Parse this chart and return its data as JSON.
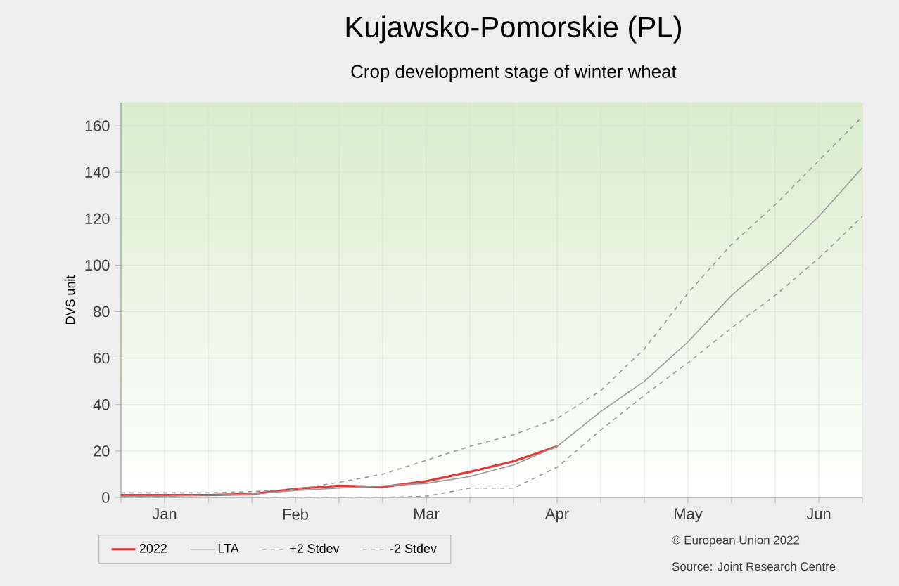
{
  "chart_data": {
    "type": "line",
    "title": "Kujawsko-Pomorskie (PL)",
    "subtitle": "Crop development stage of winter wheat",
    "ylabel": "DVS unit",
    "categories": [
      null,
      "Jan",
      null,
      null,
      "Feb",
      null,
      null,
      "Mar",
      null,
      null,
      "Apr",
      null,
      null,
      "May",
      null,
      null,
      "Jun",
      null
    ],
    "ylim": [
      0,
      170
    ],
    "yticks": [
      0,
      20,
      40,
      60,
      80,
      100,
      120,
      140,
      160
    ],
    "series": [
      {
        "name": "2022",
        "color": "#e03c3c",
        "line_style": "solid",
        "values": [
          1,
          1,
          1,
          1.5,
          3.7,
          5,
          4.5,
          7,
          11,
          15.6,
          22,
          null,
          null,
          null,
          null,
          null,
          null,
          null
        ]
      },
      {
        "name": "LTA",
        "color": "#999999",
        "line_style": "solid",
        "values": [
          0.5,
          0.5,
          1,
          1.5,
          3,
          4,
          5,
          6,
          9,
          14,
          22,
          37,
          50,
          67,
          87,
          103,
          121,
          142
        ]
      },
      {
        "name": "+2 Stdev",
        "color": "#999999",
        "line_style": "dashed",
        "values": [
          2,
          2,
          2,
          2.5,
          3.5,
          6.5,
          10,
          16,
          22,
          27,
          34,
          46,
          64,
          88,
          109,
          126,
          145,
          164
        ]
      },
      {
        "name": "-2 Stdev",
        "color": "#999999",
        "line_style": "dashed",
        "values": [
          0,
          0,
          0,
          0,
          0,
          0,
          0,
          0.5,
          4,
          4,
          13,
          29,
          44,
          58,
          73,
          87,
          103,
          121
        ]
      }
    ],
    "grid": true,
    "legend": "bottom",
    "marker": "none",
    "annotations": [
      "© European Union 2022",
      "Source: Joint Research Centre"
    ]
  }
}
